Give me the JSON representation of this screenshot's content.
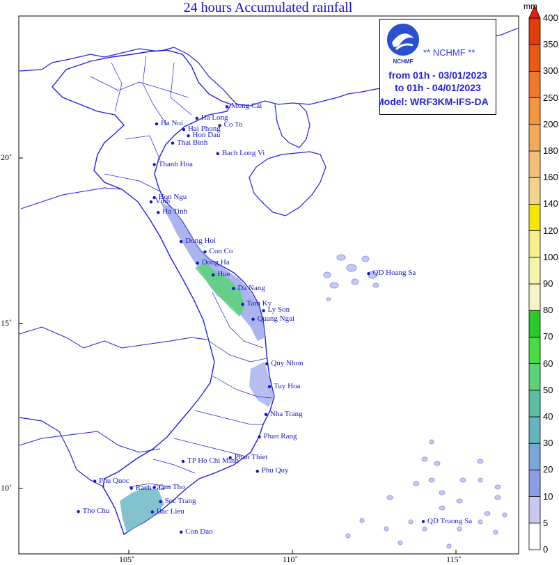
{
  "title": "24 hours Accumulated rainfall",
  "info": {
    "logo_text": "NCHMF",
    "agency": "** NCHMF **",
    "from": "from 01h - 03/01/2023",
    "to": "to 01h - 04/01/2023",
    "model": "Model: WRF3KM-IFS-DA"
  },
  "colorbar": {
    "unit": "mm",
    "levels": [
      "0",
      "5",
      "10",
      "20",
      "30",
      "40",
      "50",
      "60",
      "70",
      "80",
      "90",
      "100",
      "120",
      "140",
      "160",
      "180",
      "200",
      "250",
      "300",
      "350",
      "400"
    ],
    "colors": [
      "#ffffff",
      "#c8c8f5",
      "#8c9ce6",
      "#78a8d8",
      "#64b4c0",
      "#58c0a0",
      "#5ad278",
      "#46dc46",
      "#28c828",
      "#f5f5c8",
      "#f5f5aa",
      "#f5f08c",
      "#f5e600",
      "#f5d28c",
      "#f5be78",
      "#f5aa5a",
      "#f5963c",
      "#f07828",
      "#eb5a14",
      "#e63c0a"
    ],
    "top_color": "#e61e0a"
  },
  "axes": {
    "lon_ticks": [
      {
        "lon": 105,
        "label": "105˚"
      },
      {
        "lon": 110,
        "label": "110˚"
      },
      {
        "lon": 115,
        "label": "115˚"
      }
    ],
    "lat_ticks": [
      {
        "lat": 20,
        "label": "20˚"
      },
      {
        "lat": 15,
        "label": "15˚"
      },
      {
        "lat": 10,
        "label": "10˚"
      }
    ]
  },
  "places": [
    {
      "name": "Mong Cai",
      "lon": 108.0,
      "lat": 21.55
    },
    {
      "name": "Ha Long",
      "lon": 107.08,
      "lat": 21.2
    },
    {
      "name": "Ha Noi",
      "lon": 105.85,
      "lat": 21.03
    },
    {
      "name": "Co To",
      "lon": 107.78,
      "lat": 20.98
    },
    {
      "name": "Hai Phong",
      "lon": 106.68,
      "lat": 20.86
    },
    {
      "name": "Hon Dau",
      "lon": 106.82,
      "lat": 20.67
    },
    {
      "name": "Thai Binh",
      "lon": 106.34,
      "lat": 20.45
    },
    {
      "name": "Bach Long Vi",
      "lon": 107.72,
      "lat": 20.13
    },
    {
      "name": "Thanh Hoa",
      "lon": 105.78,
      "lat": 19.8
    },
    {
      "name": "Hon Ngu",
      "lon": 105.78,
      "lat": 18.8
    },
    {
      "name": "Vinh",
      "lon": 105.68,
      "lat": 18.67
    },
    {
      "name": "Ha Tinh",
      "lon": 105.9,
      "lat": 18.35
    },
    {
      "name": "Dong Hoi",
      "lon": 106.6,
      "lat": 17.47
    },
    {
      "name": "Con Co",
      "lon": 107.33,
      "lat": 17.16
    },
    {
      "name": "Dong Ha",
      "lon": 107.1,
      "lat": 16.82
    },
    {
      "name": "Hue",
      "lon": 107.58,
      "lat": 16.46
    },
    {
      "name": "Da Nang",
      "lon": 108.2,
      "lat": 16.05
    },
    {
      "name": "Tam Ky",
      "lon": 108.48,
      "lat": 15.57
    },
    {
      "name": "Ly Son",
      "lon": 109.12,
      "lat": 15.38
    },
    {
      "name": "Quang Ngai",
      "lon": 108.8,
      "lat": 15.12
    },
    {
      "name": "Quy Nhon",
      "lon": 109.22,
      "lat": 13.77
    },
    {
      "name": "Tuy Hoa",
      "lon": 109.3,
      "lat": 13.08
    },
    {
      "name": "Nha Trang",
      "lon": 109.19,
      "lat": 12.24
    },
    {
      "name": "Phan Rang",
      "lon": 108.99,
      "lat": 11.56
    },
    {
      "name": "Phan Thiet",
      "lon": 108.1,
      "lat": 10.93
    },
    {
      "name": "Phu Quy",
      "lon": 108.93,
      "lat": 10.52
    },
    {
      "name": "TP Ho Chi Minh",
      "lon": 106.66,
      "lat": 10.82
    },
    {
      "name": "Phu Quoc",
      "lon": 103.96,
      "lat": 10.22
    },
    {
      "name": "Rach Gia",
      "lon": 105.08,
      "lat": 10.01
    },
    {
      "name": "Can Tho",
      "lon": 105.78,
      "lat": 10.03
    },
    {
      "name": "Soc Trang",
      "lon": 105.97,
      "lat": 9.6
    },
    {
      "name": "Bac Lieu",
      "lon": 105.72,
      "lat": 9.29
    },
    {
      "name": "Tho Chu",
      "lon": 103.46,
      "lat": 9.3
    },
    {
      "name": "Con Dao",
      "lon": 106.6,
      "lat": 8.68
    },
    {
      "name": "QD Hoang Sa",
      "lon": 112.33,
      "lat": 16.5
    },
    {
      "name": "QD Truong Sa",
      "lon": 114.0,
      "lat": 9.0
    }
  ]
}
